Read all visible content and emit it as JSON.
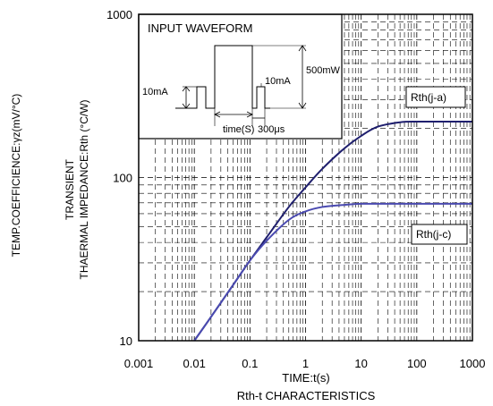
{
  "chart_data": {
    "type": "line",
    "title": "Rth-t CHARACTERISTICS",
    "xlabel": "TIME:t(s)",
    "ylabel_left": "TEMP.COEFFICIENCE:γz(mV/°C)",
    "ylabel_line1": "TRANSIENT",
    "ylabel_line2": "THAERMAL IMPEDANCE:Rth (°C/W)",
    "x_scale": "log",
    "y_scale": "log",
    "xlim": [
      0.001,
      1000
    ],
    "ylim": [
      10,
      1000
    ],
    "x_ticks": [
      "0.001",
      "0.01",
      "0.1",
      "1",
      "10",
      "100",
      "1000"
    ],
    "y_ticks": [
      "10",
      "100",
      "1000"
    ],
    "grid": true,
    "series": [
      {
        "name": "Rth(j-a)",
        "color": "#1f1f6e",
        "x": [
          0.01,
          0.02,
          0.05,
          0.1,
          0.2,
          0.5,
          1,
          2,
          5,
          10,
          20,
          50,
          100,
          200,
          1000
        ],
        "y": [
          10,
          14,
          22,
          31,
          43,
          66,
          87,
          113,
          151,
          180,
          205,
          218,
          220,
          220,
          220
        ]
      },
      {
        "name": "Rth(j-c)",
        "color": "#4a4ab0",
        "x": [
          0.01,
          0.02,
          0.05,
          0.1,
          0.2,
          0.5,
          1,
          2,
          5,
          10,
          20,
          50,
          100,
          1000
        ],
        "y": [
          10,
          14,
          22,
          31,
          41,
          55,
          62,
          66,
          68,
          69,
          69,
          69,
          69,
          69
        ]
      }
    ],
    "inset": {
      "title": "INPUT WAVEFORM",
      "label_small_current_left": "10mA",
      "label_small_current_right": "10mA",
      "label_power": "500mW",
      "label_time": "time(S)",
      "label_interval": "300μs"
    }
  }
}
